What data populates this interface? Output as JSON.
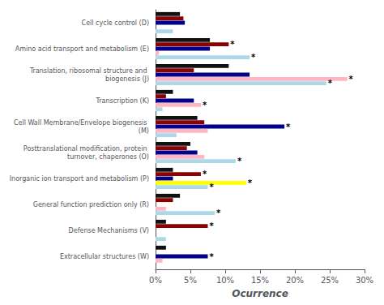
{
  "chart_data": {
    "type": "bar",
    "orientation": "horizontal",
    "grid": false,
    "categories": [
      "Cell cycle control (D)",
      "Amino acid transport and metabolism (E)",
      "Translation, ribosomal structure and biogenesis (J)",
      "Transcription (K)",
      "Cell Wall Membrane/Envelope biogenesis (M)",
      "Posttranslational modification, protein turnover, chaperones (O)",
      "Inorganic ion transport and metabolism (P)",
      "General function prediction only (R)",
      "Defense Mechanisms (V)",
      "Extracellular structures (W)"
    ],
    "series": [
      {
        "color": "#111111",
        "values": [
          3.5,
          7.8,
          10.5,
          2.5,
          6.0,
          5.0,
          2.5,
          3.5,
          1.5,
          1.5
        ],
        "annotations": [
          null,
          null,
          null,
          null,
          null,
          null,
          null,
          null,
          null,
          null
        ]
      },
      {
        "color": "#8B0000",
        "values": [
          4.0,
          10.5,
          5.5,
          1.5,
          7.0,
          4.5,
          6.5,
          2.5,
          7.5,
          0
        ],
        "annotations": [
          null,
          "*",
          null,
          null,
          null,
          null,
          "*",
          null,
          "*",
          null
        ]
      },
      {
        "color": "#00008B",
        "values": [
          4.2,
          7.8,
          13.5,
          5.5,
          18.5,
          6.0,
          2.5,
          0,
          0,
          7.5
        ],
        "annotations": [
          null,
          null,
          null,
          null,
          "*",
          null,
          null,
          null,
          null,
          "*"
        ]
      },
      {
        "colors": [
          "#FFB6C1",
          "#FFB6C1",
          "#FFB6C1",
          "#FFB6C1",
          "#FFB6C1",
          "#FFB6C1",
          "#FFFF00",
          "#FFB6C1",
          "#FFB6C1",
          "#FFB6C1"
        ],
        "values": [
          0,
          0.5,
          27.5,
          6.5,
          7.5,
          7.0,
          13.0,
          1.5,
          0,
          1.0
        ],
        "annotations": [
          null,
          null,
          "*",
          "*",
          null,
          null,
          "*",
          null,
          null,
          null
        ]
      },
      {
        "color": "#ADD8E6",
        "values": [
          2.5,
          13.5,
          24.5,
          1.0,
          3.0,
          11.5,
          7.5,
          8.5,
          1.5,
          0
        ],
        "annotations": [
          null,
          "*",
          "*",
          null,
          null,
          "*",
          "*",
          "*",
          null,
          null
        ]
      }
    ],
    "xlabel": "Ocurrence",
    "xlim": [
      0,
      30
    ],
    "xticks": [
      {
        "value": 0,
        "label": "0%"
      },
      {
        "value": 5,
        "label": "5%"
      },
      {
        "value": 10,
        "label": "10%"
      },
      {
        "value": 15,
        "label": "15%"
      },
      {
        "value": 20,
        "label": "20%"
      },
      {
        "value": 25,
        "label": "25%"
      },
      {
        "value": 30,
        "label": "30%"
      }
    ]
  }
}
